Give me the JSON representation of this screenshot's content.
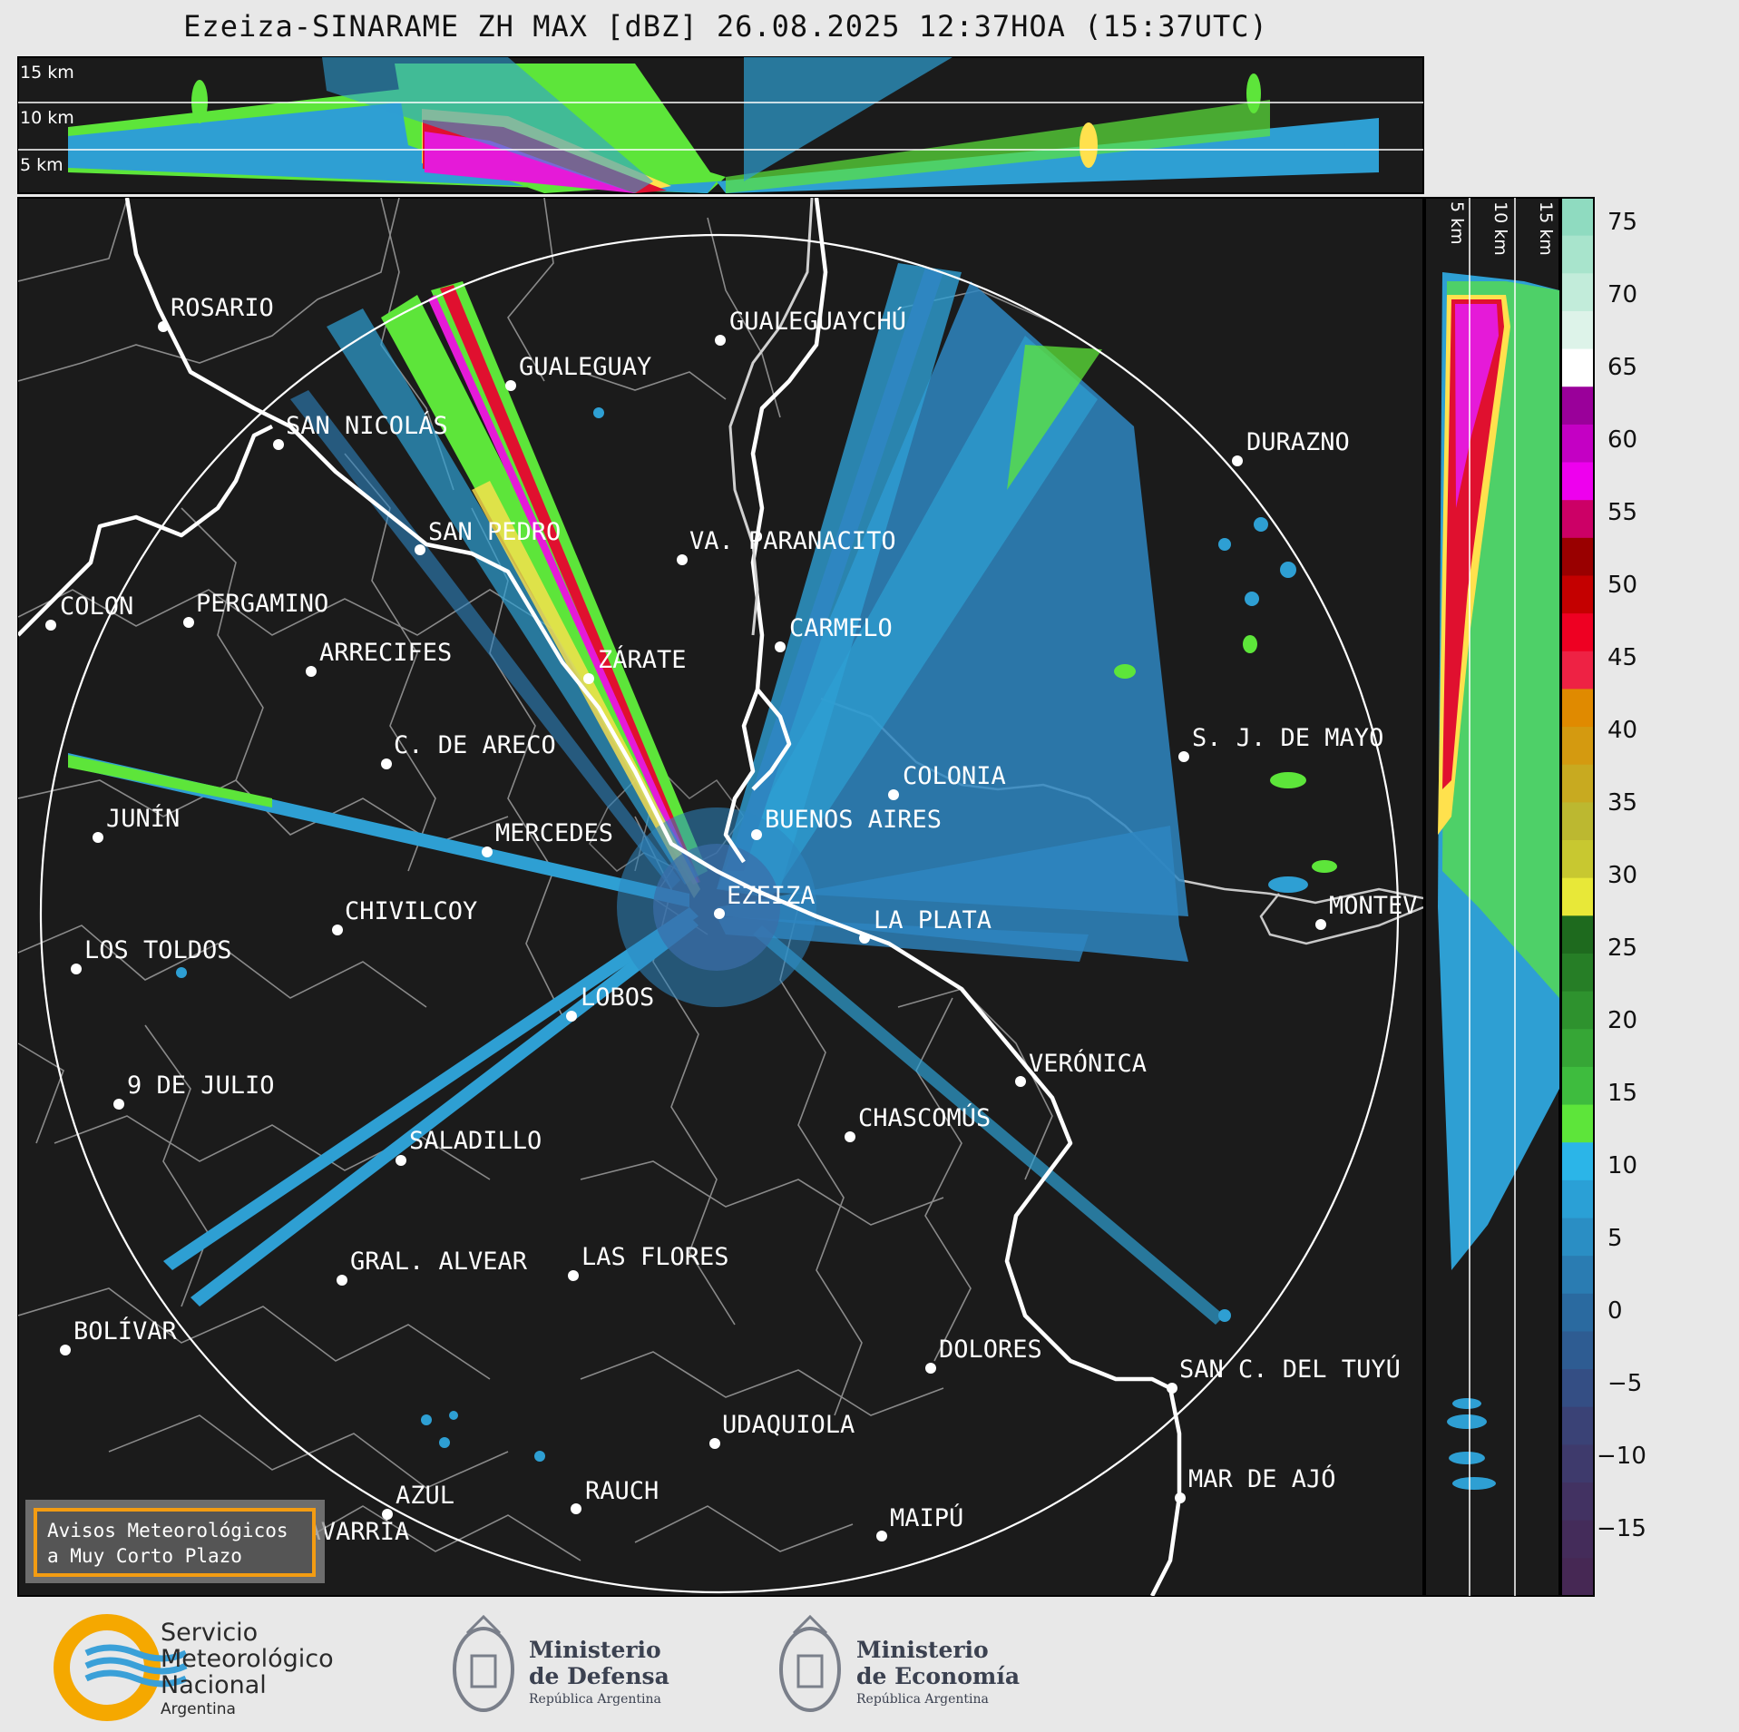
{
  "header": {
    "title": "Ezeiza-SINARAME ZH MAX [dBZ] 26.08.2025 12:37HOA (15:37UTC)"
  },
  "top_panel": {
    "height_labels": [
      "15 km",
      "10 km",
      "5 km"
    ]
  },
  "side_panel": {
    "height_labels": [
      "5 km",
      "10 km",
      "15 km"
    ]
  },
  "colorbar": {
    "ticks": [
      "75",
      "70",
      "65",
      "60",
      "55",
      "50",
      "45",
      "40",
      "35",
      "30",
      "25",
      "20",
      "15",
      "10",
      "5",
      "0",
      "−5",
      "−10",
      "−15"
    ]
  },
  "cities": [
    {
      "name": "ROSARIO"
    },
    {
      "name": "GUALEGUAYCHÚ"
    },
    {
      "name": "GUALEGUAY"
    },
    {
      "name": "SAN NICOLÁS"
    },
    {
      "name": "DURAZNO"
    },
    {
      "name": "SAN PEDRO"
    },
    {
      "name": "VA. PARANACITO"
    },
    {
      "name": "COLON"
    },
    {
      "name": "PERGAMINO"
    },
    {
      "name": "CARMELO"
    },
    {
      "name": "ARRECIFES"
    },
    {
      "name": "ZÁRATE"
    },
    {
      "name": "S. J. DE MAYO"
    },
    {
      "name": "C. DE ARECO"
    },
    {
      "name": "COLONIA"
    },
    {
      "name": "JUNÍN"
    },
    {
      "name": "BUENOS AIRES"
    },
    {
      "name": "MERCEDES"
    },
    {
      "name": "EZEIZA"
    },
    {
      "name": "MONTEV"
    },
    {
      "name": "CHIVILCOY"
    },
    {
      "name": "LA PLATA"
    },
    {
      "name": "LOS TOLDOS"
    },
    {
      "name": "LOBOS"
    },
    {
      "name": "VERÓNICA"
    },
    {
      "name": "9 DE JULIO"
    },
    {
      "name": "CHASCOMÚS"
    },
    {
      "name": "SALADILLO"
    },
    {
      "name": "GRAL. ALVEAR"
    },
    {
      "name": "LAS FLORES"
    },
    {
      "name": "BOLÍVAR"
    },
    {
      "name": "DOLORES"
    },
    {
      "name": "SAN C. DEL TUYÚ"
    },
    {
      "name": "UDAQUIOLA"
    },
    {
      "name": "MAR DE AJÓ"
    },
    {
      "name": "RAUCH"
    },
    {
      "name": "AZUL"
    },
    {
      "name": "OLAVARRÍA"
    },
    {
      "name": "MAIPÚ"
    }
  ],
  "warning_box": {
    "line1": "Avisos Meteorológicos",
    "line2": "a Muy Corto Plazo",
    "border_color": "#f39c12"
  },
  "logos": {
    "smn": {
      "line1": "Servicio",
      "line2": "Meteorológico",
      "line3": "Nacional",
      "line4": "Argentina"
    },
    "defensa": {
      "line1": "Ministerio",
      "line2": "de Defensa",
      "line3": "República Argentina"
    },
    "economia": {
      "line1": "Ministerio",
      "line2": "de Economía",
      "line3": "República Argentina"
    }
  }
}
